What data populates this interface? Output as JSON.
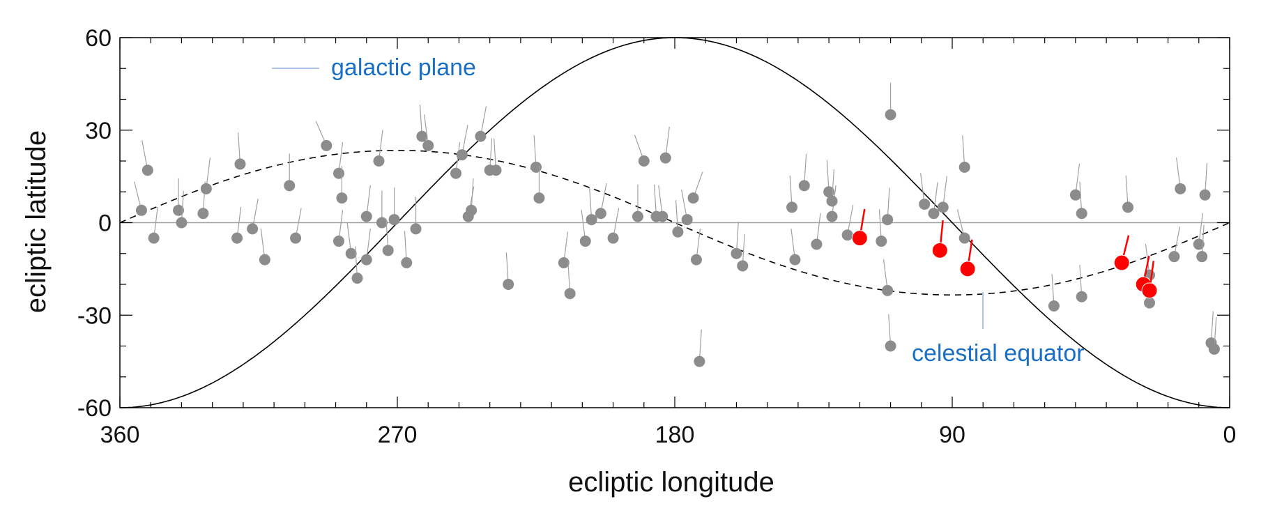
{
  "colors": {
    "gray_point": "#8c8c8c",
    "gray_stick": "#a0a0a0",
    "red_point": "#ff0000",
    "annotation": "#1a6fc4",
    "annotation_line": "#a9c4e6",
    "curve": "#000000",
    "zero_line": "#a0a0a0"
  },
  "chart_data": {
    "type": "scatter",
    "title": "",
    "xlabel": "ecliptic longitude",
    "ylabel": "ecliptic latitude",
    "xlim": [
      360,
      0
    ],
    "ylim": [
      -60,
      60
    ],
    "x_reversed": true,
    "x_ticks": [
      360,
      270,
      180,
      90,
      0
    ],
    "y_ticks": [
      60,
      30,
      0,
      -30,
      -60
    ],
    "x_tick_labels": [
      "360",
      "270",
      "180",
      "90",
      "0"
    ],
    "y_tick_labels": [
      "60",
      "30",
      "0",
      "-30",
      "-60"
    ],
    "grid": false,
    "horizontal_line_y": 0,
    "annotations": {
      "galactic_plane": "galactic plane",
      "celestial_equator": "celestial equator"
    },
    "curves": [
      {
        "label": "galactic plane",
        "style": "solid"
      },
      {
        "label": "celestial equator",
        "style": "dashed"
      }
    ],
    "series": [
      {
        "color": "gray",
        "points": [
          {
            "lon": 353,
            "lat": 4,
            "dx": -4,
            "dy": 8
          },
          {
            "lon": 351,
            "lat": 17,
            "dx": -3,
            "dy": 8
          },
          {
            "lon": 349,
            "lat": -5,
            "dx": 2,
            "dy": 8
          },
          {
            "lon": 341,
            "lat": 4,
            "dx": 0,
            "dy": 8
          },
          {
            "lon": 340,
            "lat": 0,
            "dx": 1,
            "dy": 8
          },
          {
            "lon": 333,
            "lat": 3,
            "dx": 1,
            "dy": 8
          },
          {
            "lon": 332,
            "lat": 11,
            "dx": 2,
            "dy": 8
          },
          {
            "lon": 322,
            "lat": -5,
            "dx": 2,
            "dy": 8
          },
          {
            "lon": 321,
            "lat": 19,
            "dx": -1,
            "dy": 8
          },
          {
            "lon": 317,
            "lat": -2,
            "dx": 3,
            "dy": 8
          },
          {
            "lon": 313,
            "lat": -12,
            "dx": -2,
            "dy": 8
          },
          {
            "lon": 305,
            "lat": 12,
            "dx": 0,
            "dy": 8
          },
          {
            "lon": 303,
            "lat": -5,
            "dx": 3,
            "dy": 8
          },
          {
            "lon": 293,
            "lat": 25,
            "dx": -6,
            "dy": 7
          },
          {
            "lon": 289,
            "lat": -6,
            "dx": 2,
            "dy": 8
          },
          {
            "lon": 289,
            "lat": 16,
            "dx": 2,
            "dy": 8
          },
          {
            "lon": 288,
            "lat": 8,
            "dx": 0,
            "dy": 8
          },
          {
            "lon": 285,
            "lat": -10,
            "dx": -2,
            "dy": 8
          },
          {
            "lon": 283,
            "lat": -18,
            "dx": -1,
            "dy": 8
          },
          {
            "lon": 280,
            "lat": 2,
            "dx": 2,
            "dy": 8
          },
          {
            "lon": 280,
            "lat": -12,
            "dx": 2,
            "dy": 8
          },
          {
            "lon": 276,
            "lat": 20,
            "dx": 2,
            "dy": 8
          },
          {
            "lon": 275,
            "lat": 0,
            "dx": 0,
            "dy": 8
          },
          {
            "lon": 273,
            "lat": -9,
            "dx": -1,
            "dy": 8
          },
          {
            "lon": 271,
            "lat": 1,
            "dx": 0,
            "dy": 8
          },
          {
            "lon": 267,
            "lat": -13,
            "dx": -1,
            "dy": 8
          },
          {
            "lon": 264,
            "lat": -2,
            "dx": 0,
            "dy": 8
          },
          {
            "lon": 262,
            "lat": 28,
            "dx": -1,
            "dy": 8
          },
          {
            "lon": 260,
            "lat": 25,
            "dx": -2,
            "dy": 8
          },
          {
            "lon": 251,
            "lat": 16,
            "dx": 2,
            "dy": 8
          },
          {
            "lon": 249,
            "lat": 22,
            "dx": 3,
            "dy": 8
          },
          {
            "lon": 247,
            "lat": 2,
            "dx": 3,
            "dy": 8
          },
          {
            "lon": 246,
            "lat": 4,
            "dx": 1,
            "dy": 8
          },
          {
            "lon": 243,
            "lat": 28,
            "dx": 3,
            "dy": 8
          },
          {
            "lon": 240,
            "lat": 17,
            "dx": 1,
            "dy": 8
          },
          {
            "lon": 238,
            "lat": 17,
            "dx": -1,
            "dy": 8
          },
          {
            "lon": 234,
            "lat": -20,
            "dx": -1,
            "dy": 8
          },
          {
            "lon": 225,
            "lat": 18,
            "dx": -1,
            "dy": 8
          },
          {
            "lon": 224,
            "lat": 8,
            "dx": 0,
            "dy": 8
          },
          {
            "lon": 216,
            "lat": -13,
            "dx": 2,
            "dy": 8
          },
          {
            "lon": 214,
            "lat": -23,
            "dx": -1,
            "dy": 8
          },
          {
            "lon": 209,
            "lat": -6,
            "dx": -2,
            "dy": 8
          },
          {
            "lon": 207,
            "lat": 1,
            "dx": -1,
            "dy": 8
          },
          {
            "lon": 204,
            "lat": 3,
            "dx": 3,
            "dy": 8
          },
          {
            "lon": 200,
            "lat": -5,
            "dx": 3,
            "dy": 8
          },
          {
            "lon": 192,
            "lat": 2,
            "dx": 0,
            "dy": 8
          },
          {
            "lon": 190,
            "lat": 20,
            "dx": -5,
            "dy": 7
          },
          {
            "lon": 186,
            "lat": 2,
            "dx": -1,
            "dy": 8
          },
          {
            "lon": 184,
            "lat": 2,
            "dx": -2,
            "dy": 8
          },
          {
            "lon": 183,
            "lat": 21,
            "dx": 2,
            "dy": 8
          },
          {
            "lon": 179,
            "lat": -3,
            "dx": -1,
            "dy": 8
          },
          {
            "lon": 176,
            "lat": 1,
            "dx": -3,
            "dy": 8
          },
          {
            "lon": 174,
            "lat": 8,
            "dx": 5,
            "dy": 7
          },
          {
            "lon": 173,
            "lat": -12,
            "dx": 2,
            "dy": 8
          },
          {
            "lon": 172,
            "lat": -45,
            "dx": 1,
            "dy": 8
          },
          {
            "lon": 160,
            "lat": -10,
            "dx": 1,
            "dy": 8
          },
          {
            "lon": 158,
            "lat": -14,
            "dx": 1,
            "dy": 8
          },
          {
            "lon": 142,
            "lat": 5,
            "dx": -1,
            "dy": 8
          },
          {
            "lon": 141,
            "lat": -12,
            "dx": -2,
            "dy": 8
          },
          {
            "lon": 138,
            "lat": 12,
            "dx": 1,
            "dy": 8
          },
          {
            "lon": 134,
            "lat": -7,
            "dx": 2,
            "dy": 8
          },
          {
            "lon": 130,
            "lat": 10,
            "dx": -1,
            "dy": 8
          },
          {
            "lon": 129,
            "lat": 2,
            "dx": 2,
            "dy": 8
          },
          {
            "lon": 129,
            "lat": 7,
            "dx": 1,
            "dy": 8
          },
          {
            "lon": 124,
            "lat": -4,
            "dx": 3,
            "dy": 8
          },
          {
            "lon": 113,
            "lat": -6,
            "dx": -1,
            "dy": 8
          },
          {
            "lon": 111,
            "lat": 1,
            "dx": 1,
            "dy": 8
          },
          {
            "lon": 111,
            "lat": -22,
            "dx": -2,
            "dy": 8
          },
          {
            "lon": 110,
            "lat": 35,
            "dx": 0,
            "dy": 8
          },
          {
            "lon": 110,
            "lat": -40,
            "dx": -1,
            "dy": 8
          },
          {
            "lon": 99,
            "lat": 6,
            "dx": -2,
            "dy": 8
          },
          {
            "lon": 96,
            "lat": 3,
            "dx": 2,
            "dy": 8
          },
          {
            "lon": 93,
            "lat": 5,
            "dx": 2,
            "dy": 8
          },
          {
            "lon": 86,
            "lat": 18,
            "dx": -1,
            "dy": 8
          },
          {
            "lon": 86,
            "lat": -5,
            "dx": -4,
            "dy": 8
          },
          {
            "lon": 57,
            "lat": -27,
            "dx": -1,
            "dy": 8
          },
          {
            "lon": 50,
            "lat": 9,
            "dx": 2,
            "dy": 8
          },
          {
            "lon": 48,
            "lat": 3,
            "dx": -1,
            "dy": 8
          },
          {
            "lon": 48,
            "lat": -24,
            "dx": -1,
            "dy": 8
          },
          {
            "lon": 33,
            "lat": 5,
            "dx": -1,
            "dy": 8
          },
          {
            "lon": 26,
            "lat": -17,
            "dx": -2,
            "dy": 8
          },
          {
            "lon": 26,
            "lat": -26,
            "dx": 1,
            "dy": 8
          },
          {
            "lon": 18,
            "lat": -11,
            "dx": 3,
            "dy": 8
          },
          {
            "lon": 16,
            "lat": 11,
            "dx": -2,
            "dy": 8
          },
          {
            "lon": 10,
            "lat": -7,
            "dx": 2,
            "dy": 8
          },
          {
            "lon": 9,
            "lat": -11,
            "dx": 1,
            "dy": 8
          },
          {
            "lon": 8,
            "lat": 9,
            "dx": 1,
            "dy": 8
          },
          {
            "lon": 6,
            "lat": -39,
            "dx": 1,
            "dy": 8
          },
          {
            "lon": 5,
            "lat": -41,
            "dx": 1,
            "dy": 8
          }
        ]
      },
      {
        "color": "red",
        "points": [
          {
            "lon": 120,
            "lat": -5,
            "dx": 3,
            "dy": 9
          },
          {
            "lon": 94,
            "lat": -9,
            "dx": 2,
            "dy": 10
          },
          {
            "lon": 85,
            "lat": -15,
            "dx": 3,
            "dy": 10
          },
          {
            "lon": 35,
            "lat": -13,
            "dx": 4,
            "dy": 8
          },
          {
            "lon": 28,
            "lat": -20,
            "dx": 4,
            "dy": 10
          },
          {
            "lon": 26,
            "lat": -22,
            "dx": 3,
            "dy": 11
          }
        ]
      }
    ]
  }
}
